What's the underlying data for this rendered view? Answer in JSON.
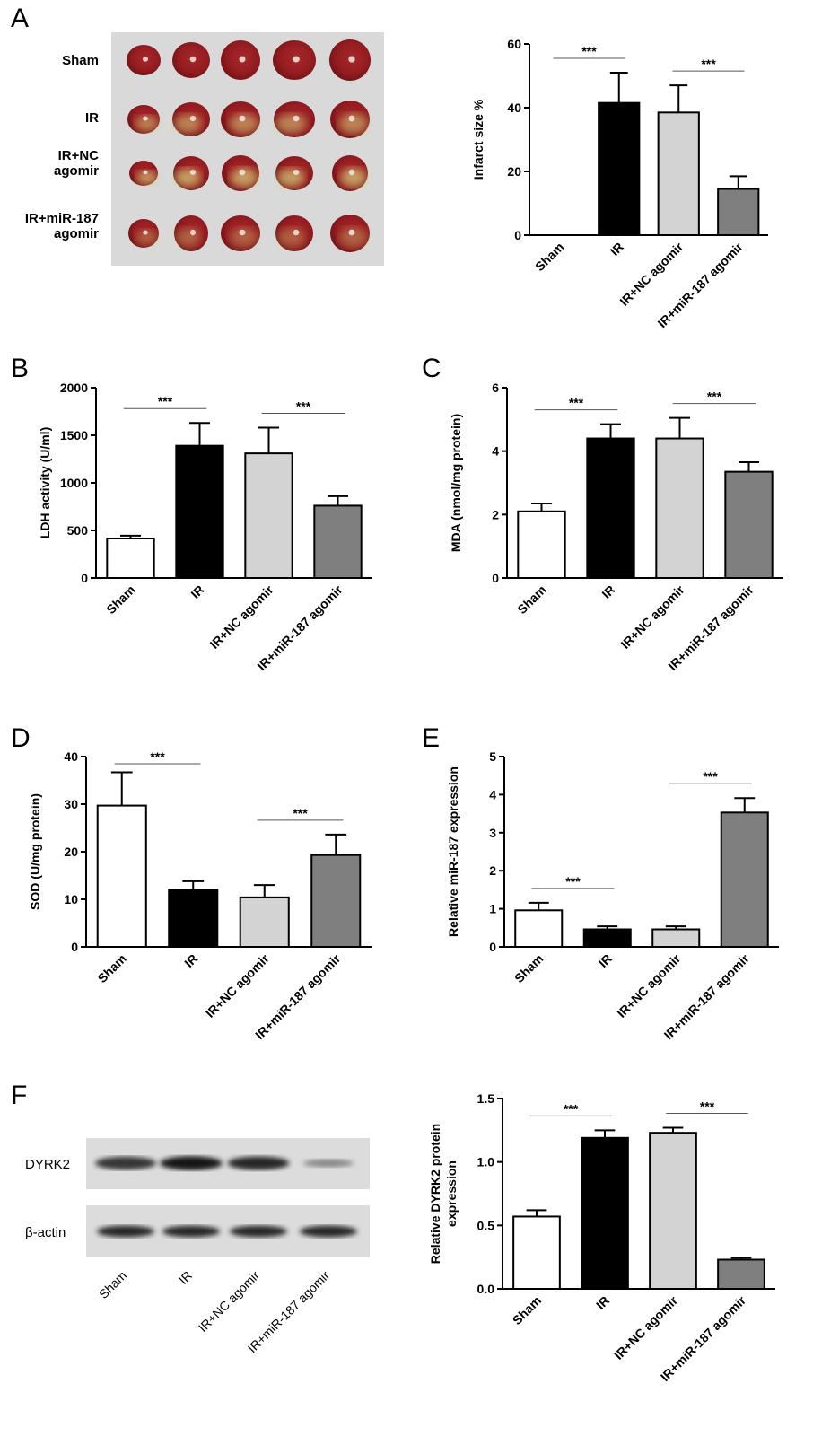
{
  "panels": {
    "A": "A",
    "B": "B",
    "C": "C",
    "D": "D",
    "E": "E",
    "F": "F"
  },
  "photo": {
    "rows": [
      "Sham",
      "IR",
      "IR+NC\nagomir",
      "IR+miR-187\nagomir"
    ]
  },
  "blot": {
    "rows": [
      "DYRK2",
      "β-actin"
    ],
    "lanes": [
      "Sham",
      "IR",
      "IR+NC agomir",
      "IR+miR-187 agomir"
    ],
    "dyrk2_intensity": [
      0.78,
      0.95,
      0.85,
      0.35
    ],
    "actin_intensity": [
      0.85,
      0.85,
      0.85,
      0.85
    ]
  },
  "colors": {
    "Sham": "#ffffff",
    "IR": "#000000",
    "IR+NC agomir": "#d3d3d3",
    "IR+miR-187 agomir": "#7f7f7f"
  },
  "chart_data": [
    {
      "id": "A",
      "type": "bar",
      "xlabel": "",
      "ylabel": "Infarct size %",
      "categories": [
        "Sham",
        "IR",
        "IR+NC agomir",
        "IR+miR-187 agomir"
      ],
      "values": [
        0,
        41.5,
        38.5,
        14.5
      ],
      "errors": [
        0,
        9.5,
        8.5,
        4
      ],
      "ylim": [
        0,
        60
      ],
      "yticks": [
        "0",
        "20",
        "40",
        "60"
      ],
      "significance": [
        {
          "from": 0,
          "to": 1,
          "label": "***"
        },
        {
          "from": 2,
          "to": 3,
          "label": "***"
        }
      ]
    },
    {
      "id": "B",
      "type": "bar",
      "xlabel": "",
      "ylabel": "LDH activity (U/ml)",
      "categories": [
        "Sham",
        "IR",
        "IR+NC agomir",
        "IR+miR-187 agomir"
      ],
      "values": [
        415,
        1390,
        1310,
        760
      ],
      "errors": [
        30,
        240,
        270,
        100
      ],
      "ylim": [
        0,
        2000
      ],
      "yticks": [
        "0",
        "500",
        "1000",
        "1500",
        "2000"
      ],
      "significance": [
        {
          "from": 0,
          "to": 1,
          "label": "***"
        },
        {
          "from": 2,
          "to": 3,
          "label": "***"
        }
      ]
    },
    {
      "id": "C",
      "type": "bar",
      "xlabel": "",
      "ylabel": "MDA (nmol/mg protein)",
      "categories": [
        "Sham",
        "IR",
        "IR+NC agomir",
        "IR+miR-187 agomir"
      ],
      "values": [
        2.1,
        4.4,
        4.4,
        3.35
      ],
      "errors": [
        0.25,
        0.45,
        0.65,
        0.3
      ],
      "ylim": [
        0,
        6
      ],
      "yticks": [
        "0",
        "2",
        "4",
        "6"
      ],
      "significance": [
        {
          "from": 0,
          "to": 1,
          "label": "***"
        },
        {
          "from": 2,
          "to": 3,
          "label": "***"
        }
      ]
    },
    {
      "id": "D",
      "type": "bar",
      "xlabel": "",
      "ylabel": "SOD (U/mg protein)",
      "categories": [
        "Sham",
        "IR",
        "IR+NC agomir",
        "IR+miR-187 agomir"
      ],
      "values": [
        29.7,
        12,
        10.4,
        19.3
      ],
      "errors": [
        7,
        1.8,
        2.6,
        4.3
      ],
      "ylim": [
        0,
        40
      ],
      "yticks": [
        "0",
        "10",
        "20",
        "30",
        "40"
      ],
      "significance": [
        {
          "from": 0,
          "to": 1,
          "label": "***"
        },
        {
          "from": 2,
          "to": 3,
          "label": "***"
        }
      ]
    },
    {
      "id": "E",
      "type": "bar",
      "xlabel": "",
      "ylabel": "Relative miR-187 expression",
      "categories": [
        "Sham",
        "IR",
        "IR+NC agomir",
        "IR+miR-187 agomir"
      ],
      "values": [
        0.96,
        0.46,
        0.46,
        3.53
      ],
      "errors": [
        0.2,
        0.08,
        0.08,
        0.38
      ],
      "ylim": [
        0,
        5
      ],
      "yticks": [
        "0",
        "1",
        "2",
        "3",
        "4",
        "5"
      ],
      "significance": [
        {
          "from": 0,
          "to": 1,
          "label": "***"
        },
        {
          "from": 2,
          "to": 3,
          "label": "***"
        }
      ]
    },
    {
      "id": "F",
      "type": "bar",
      "xlabel": "",
      "ylabel": "Relative DYRK2 protein\nexpression",
      "categories": [
        "Sham",
        "IR",
        "IR+NC agomir",
        "IR+miR-187 agomir"
      ],
      "values": [
        0.57,
        1.19,
        1.23,
        0.23
      ],
      "errors": [
        0.05,
        0.06,
        0.04,
        0.015
      ],
      "ylim": [
        0,
        1.5
      ],
      "yticks": [
        "0.0",
        "0.5",
        "1.0",
        "1.5"
      ],
      "significance": [
        {
          "from": 0,
          "to": 1,
          "label": "***"
        },
        {
          "from": 2,
          "to": 3,
          "label": "***"
        }
      ]
    }
  ]
}
